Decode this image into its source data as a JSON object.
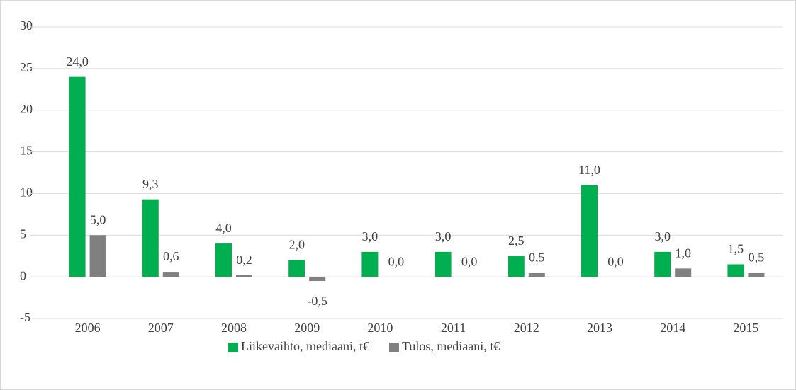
{
  "chart_data": {
    "type": "bar",
    "categories": [
      "2006",
      "2007",
      "2008",
      "2009",
      "2010",
      "2011",
      "2012",
      "2013",
      "2014",
      "2015"
    ],
    "series": [
      {
        "name": "Liikevaihto, mediaani, t€",
        "color": "#00b050",
        "values": [
          24,
          9.3,
          4,
          2,
          3,
          3,
          2.5,
          11,
          3,
          1.5
        ],
        "value_labels": [
          "24,0",
          "9,3",
          "4,0",
          "2,0",
          "3,0",
          "3,0",
          "2,5",
          "11,0",
          "3,0",
          "1,5"
        ]
      },
      {
        "name": "Tulos, mediaani, t€",
        "color": "#808080",
        "values": [
          5,
          0.6,
          0.2,
          -0.5,
          0,
          0,
          0.5,
          0,
          1,
          0.5
        ],
        "value_labels": [
          "5,0",
          "0,6",
          "0,2",
          "-0,5",
          "0,0",
          "0,0",
          "0,5",
          "0,0",
          "1,0",
          "0,5"
        ]
      }
    ],
    "ylim": [
      -5,
      30
    ],
    "yticks": [
      -5,
      0,
      5,
      10,
      15,
      20,
      25,
      30
    ],
    "grid": true,
    "legend": "bottom"
  }
}
